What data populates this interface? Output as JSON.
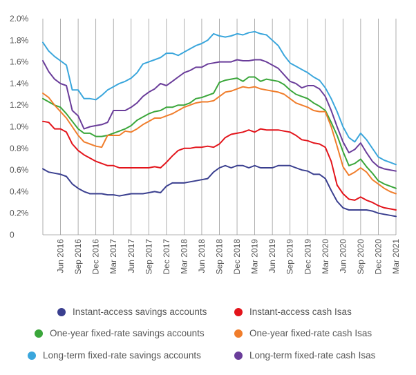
{
  "chart_data": {
    "type": "line",
    "title": "",
    "xlabel": "",
    "ylabel": "",
    "ylim": [
      0,
      2.0
    ],
    "y_ticks": [
      "0",
      "0.2%",
      "0.4%",
      "0.6%",
      "0.8%",
      "1.0%",
      "1.2%",
      "1.4%",
      "1.6%",
      "1.8%",
      "2.0%"
    ],
    "x_tick_labels": [
      "Jun 2016",
      "Sep 2016",
      "Dec 2016",
      "Mar 2017",
      "Jun 2017",
      "Sep 2017",
      "Dec 2017",
      "Mar 2018",
      "Jun 2018",
      "Sep 2018",
      "Dec 2018",
      "Mar 2019",
      "Jun 2019",
      "Sep 2019",
      "Dec 2019",
      "Mar 2020",
      "Jun 2020",
      "Sep 2020",
      "Dec 2020",
      "Mar 2021"
    ],
    "x": [
      "Mar 2016",
      "Apr 2016",
      "May 2016",
      "Jun 2016",
      "Jul 2016",
      "Aug 2016",
      "Sep 2016",
      "Oct 2016",
      "Nov 2016",
      "Dec 2016",
      "Jan 2017",
      "Feb 2017",
      "Mar 2017",
      "Apr 2017",
      "May 2017",
      "Jun 2017",
      "Jul 2017",
      "Aug 2017",
      "Sep 2017",
      "Oct 2017",
      "Nov 2017",
      "Dec 2017",
      "Jan 2018",
      "Feb 2018",
      "Mar 2018",
      "Apr 2018",
      "May 2018",
      "Jun 2018",
      "Jul 2018",
      "Aug 2018",
      "Sep 2018",
      "Oct 2018",
      "Nov 2018",
      "Dec 2018",
      "Jan 2019",
      "Feb 2019",
      "Mar 2019",
      "Apr 2019",
      "May 2019",
      "Jun 2019",
      "Jul 2019",
      "Aug 2019",
      "Sep 2019",
      "Oct 2019",
      "Nov 2019",
      "Dec 2019",
      "Jan 2020",
      "Feb 2020",
      "Mar 2020",
      "Apr 2020",
      "May 2020",
      "Jun 2020",
      "Jul 2020",
      "Aug 2020",
      "Sep 2020",
      "Oct 2020",
      "Nov 2020",
      "Dec 2020",
      "Jan 2021",
      "Feb 2021",
      "Mar 2021"
    ],
    "grid": "vertical",
    "legend_position": "bottom",
    "series": [
      {
        "name": "Instant-access savings accounts",
        "color": "#3a3f8f",
        "values": [
          0.61,
          0.58,
          0.57,
          0.56,
          0.54,
          0.47,
          0.43,
          0.4,
          0.38,
          0.38,
          0.38,
          0.37,
          0.37,
          0.36,
          0.37,
          0.38,
          0.38,
          0.38,
          0.39,
          0.4,
          0.39,
          0.45,
          0.48,
          0.48,
          0.48,
          0.49,
          0.5,
          0.51,
          0.52,
          0.58,
          0.62,
          0.64,
          0.62,
          0.64,
          0.64,
          0.62,
          0.64,
          0.62,
          0.62,
          0.62,
          0.64,
          0.64,
          0.64,
          0.62,
          0.6,
          0.59,
          0.56,
          0.56,
          0.52,
          0.41,
          0.31,
          0.25,
          0.23,
          0.23,
          0.23,
          0.23,
          0.22,
          0.2,
          0.19,
          0.18,
          0.17
        ]
      },
      {
        "name": "Instant-access cash Isas",
        "color": "#e3141b",
        "values": [
          1.05,
          1.04,
          0.98,
          0.98,
          0.95,
          0.84,
          0.78,
          0.74,
          0.71,
          0.68,
          0.66,
          0.64,
          0.64,
          0.62,
          0.62,
          0.62,
          0.62,
          0.62,
          0.62,
          0.63,
          0.62,
          0.67,
          0.73,
          0.78,
          0.8,
          0.8,
          0.81,
          0.81,
          0.82,
          0.81,
          0.84,
          0.9,
          0.93,
          0.94,
          0.95,
          0.97,
          0.95,
          0.98,
          0.97,
          0.97,
          0.97,
          0.96,
          0.95,
          0.92,
          0.88,
          0.87,
          0.85,
          0.84,
          0.81,
          0.68,
          0.46,
          0.38,
          0.33,
          0.32,
          0.35,
          0.32,
          0.3,
          0.27,
          0.25,
          0.24,
          0.23
        ]
      },
      {
        "name": "One-year fixed-rate savings accounts",
        "color": "#3aa63a",
        "values": [
          1.26,
          1.23,
          1.2,
          1.18,
          1.12,
          1.05,
          0.98,
          0.94,
          0.94,
          0.91,
          0.91,
          0.92,
          0.94,
          0.96,
          0.98,
          1.01,
          1.06,
          1.09,
          1.12,
          1.14,
          1.15,
          1.18,
          1.18,
          1.2,
          1.2,
          1.22,
          1.26,
          1.27,
          1.29,
          1.31,
          1.41,
          1.43,
          1.44,
          1.45,
          1.42,
          1.46,
          1.46,
          1.42,
          1.44,
          1.43,
          1.42,
          1.39,
          1.34,
          1.3,
          1.28,
          1.26,
          1.22,
          1.19,
          1.15,
          1.04,
          0.92,
          0.77,
          0.64,
          0.66,
          0.7,
          0.63,
          0.57,
          0.5,
          0.47,
          0.45,
          0.43
        ]
      },
      {
        "name": "One-year fixed-rate cash Isas",
        "color": "#f07d2b",
        "values": [
          1.31,
          1.27,
          1.2,
          1.14,
          1.08,
          1.0,
          0.92,
          0.86,
          0.84,
          0.82,
          0.81,
          0.92,
          0.92,
          0.92,
          0.96,
          0.95,
          0.98,
          1.02,
          1.05,
          1.08,
          1.08,
          1.1,
          1.12,
          1.15,
          1.18,
          1.2,
          1.22,
          1.23,
          1.23,
          1.24,
          1.28,
          1.32,
          1.33,
          1.35,
          1.37,
          1.36,
          1.37,
          1.35,
          1.34,
          1.33,
          1.32,
          1.3,
          1.26,
          1.22,
          1.2,
          1.18,
          1.15,
          1.14,
          1.14,
          1.0,
          0.82,
          0.63,
          0.55,
          0.58,
          0.62,
          0.58,
          0.51,
          0.47,
          0.43,
          0.4,
          0.38
        ]
      },
      {
        "name": "Long-term fixed-rate savings accounts",
        "color": "#3aa6dc",
        "values": [
          1.78,
          1.7,
          1.65,
          1.61,
          1.57,
          1.34,
          1.34,
          1.26,
          1.26,
          1.25,
          1.29,
          1.34,
          1.37,
          1.4,
          1.42,
          1.45,
          1.5,
          1.58,
          1.6,
          1.62,
          1.64,
          1.68,
          1.68,
          1.66,
          1.69,
          1.72,
          1.75,
          1.77,
          1.8,
          1.86,
          1.84,
          1.83,
          1.84,
          1.86,
          1.85,
          1.87,
          1.88,
          1.86,
          1.85,
          1.8,
          1.75,
          1.66,
          1.59,
          1.56,
          1.53,
          1.5,
          1.46,
          1.43,
          1.36,
          1.26,
          1.14,
          1.0,
          0.9,
          0.86,
          0.94,
          0.88,
          0.8,
          0.72,
          0.69,
          0.67,
          0.65
        ]
      },
      {
        "name": "Long-term fixed-rate cash Isas",
        "color": "#6a3d9a",
        "values": [
          1.61,
          1.51,
          1.44,
          1.4,
          1.38,
          1.15,
          1.1,
          0.98,
          1.0,
          1.01,
          1.02,
          1.04,
          1.15,
          1.15,
          1.15,
          1.18,
          1.22,
          1.28,
          1.32,
          1.35,
          1.4,
          1.38,
          1.42,
          1.46,
          1.5,
          1.52,
          1.55,
          1.55,
          1.58,
          1.59,
          1.6,
          1.6,
          1.6,
          1.62,
          1.61,
          1.61,
          1.62,
          1.62,
          1.6,
          1.57,
          1.54,
          1.48,
          1.42,
          1.4,
          1.36,
          1.38,
          1.38,
          1.35,
          1.28,
          1.15,
          1.0,
          0.86,
          0.76,
          0.79,
          0.85,
          0.76,
          0.68,
          0.63,
          0.61,
          0.6,
          0.59
        ]
      }
    ]
  }
}
